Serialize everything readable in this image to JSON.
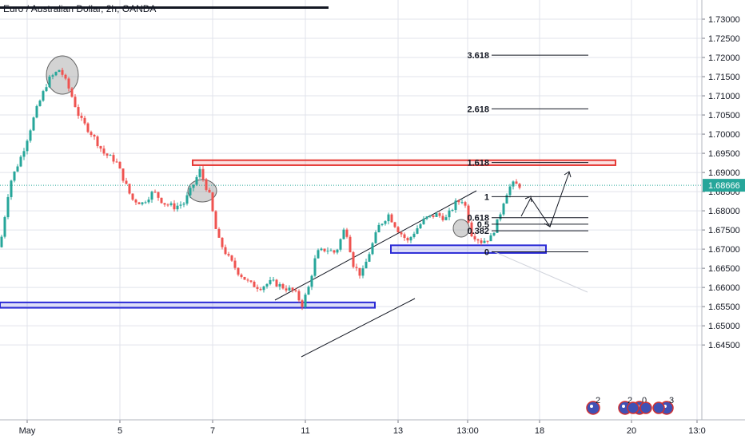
{
  "header": {
    "title": "Euro / Australian Dollar, 2h, OANDA"
  },
  "chart_data": {
    "type": "candlestick",
    "title": "Euro / Australian Dollar, 2h, OANDA",
    "y_ticks": [
      "1.73000",
      "1.72500",
      "1.72000",
      "1.71500",
      "1.71000",
      "1.70500",
      "1.70000",
      "1.69500",
      "1.69000",
      "1.68500",
      "1.68000",
      "1.67500",
      "1.67000",
      "1.66500",
      "1.66000",
      "1.65500",
      "1.65000",
      "1.64500"
    ],
    "y_tick_values": [
      1.73,
      1.725,
      1.72,
      1.715,
      1.71,
      1.705,
      1.7,
      1.695,
      1.69,
      1.685,
      1.68,
      1.675,
      1.67,
      1.665,
      1.66,
      1.655,
      1.65,
      1.645
    ],
    "x_ticks": [
      "May",
      "5",
      "7",
      "11",
      "13",
      "13:00",
      "18",
      "20",
      "13:0"
    ],
    "last_price": "1.68666",
    "last_price_value": 1.68666,
    "fib_levels": [
      {
        "label": "3.618",
        "value": 1.7206
      },
      {
        "label": "2.618",
        "value": 1.7066
      },
      {
        "label": "1.618",
        "value": 1.6926
      },
      {
        "label": "1",
        "value": 1.6837
      },
      {
        "label": "0.618",
        "value": 1.6782
      },
      {
        "label": "0.5",
        "value": 1.6765
      },
      {
        "label": "0.382",
        "value": 1.6748
      },
      {
        "label": "0",
        "value": 1.6693
      }
    ],
    "zones": [
      {
        "name": "resistance",
        "color": "#e53935",
        "top": 1.6932,
        "bottom": 1.6919
      },
      {
        "name": "support-low",
        "color": "#2b2bd6",
        "top": 1.6561,
        "bottom": 1.6547
      },
      {
        "name": "support-mid",
        "color": "#2b2bd6",
        "top": 1.671,
        "bottom": 1.669
      }
    ],
    "colors": {
      "up": "#26a69a",
      "down": "#ef5350",
      "price_tag": "#26a69a",
      "grid": "#e0e3eb"
    },
    "event_badges": [
      "2",
      "2",
      "0",
      "3"
    ],
    "grid": true
  }
}
